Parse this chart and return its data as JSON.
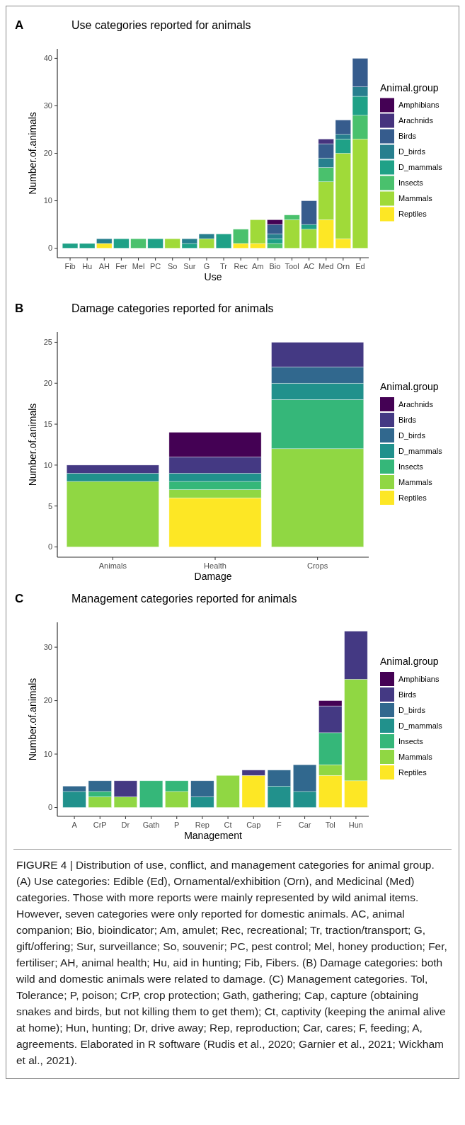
{
  "chart_data": [
    {
      "type": "bar",
      "stacked": true,
      "title": "Use categories reported for animals",
      "xlabel": "Use",
      "ylabel": "Number.of.animals",
      "legend_title": "Animal.group",
      "legend": "right",
      "annotations": [
        "A"
      ],
      "categories": [
        "Fib",
        "Hu",
        "AH",
        "Fer",
        "Mel",
        "PC",
        "So",
        "Sur",
        "G",
        "Tr",
        "Rec",
        "Am",
        "Bio",
        "Tool",
        "AC",
        "Med",
        "Orn",
        "Ed"
      ],
      "ylim": [
        -2,
        42
      ],
      "yticks": [
        0,
        10,
        20,
        30,
        40
      ],
      "series": [
        {
          "name": "Reptiles",
          "color": "#fde725",
          "values": [
            0,
            0,
            1,
            0,
            0,
            0,
            0,
            0,
            0,
            0,
            1,
            1,
            0,
            0,
            0,
            6,
            2,
            0
          ]
        },
        {
          "name": "Mammals",
          "color": "#a0da39",
          "values": [
            0,
            0,
            0,
            0,
            0,
            0,
            2,
            0,
            2,
            0,
            0,
            5,
            0,
            6,
            4,
            8,
            18,
            23
          ]
        },
        {
          "name": "Insects",
          "color": "#4ac16d",
          "values": [
            0,
            0,
            0,
            0,
            2,
            0,
            0,
            0,
            0,
            0,
            3,
            0,
            1,
            1,
            0,
            3,
            0,
            5
          ]
        },
        {
          "name": "D_mammals",
          "color": "#1fa187",
          "values": [
            1,
            1,
            0,
            2,
            0,
            2,
            0,
            1,
            0,
            3,
            0,
            0,
            1,
            0,
            1,
            0,
            3,
            4
          ]
        },
        {
          "name": "D_birds",
          "color": "#277f8e",
          "values": [
            0,
            0,
            1,
            0,
            0,
            0,
            0,
            1,
            1,
            0,
            0,
            0,
            1,
            0,
            0,
            2,
            1,
            2
          ]
        },
        {
          "name": "Birds",
          "color": "#365c8d",
          "values": [
            0,
            0,
            0,
            0,
            0,
            0,
            0,
            0,
            0,
            0,
            0,
            0,
            2,
            0,
            5,
            3,
            3,
            6
          ]
        },
        {
          "name": "Arachnids",
          "color": "#46337e",
          "values": [
            0,
            0,
            0,
            0,
            0,
            0,
            0,
            0,
            0,
            0,
            0,
            0,
            0,
            0,
            0,
            1,
            0,
            0
          ]
        },
        {
          "name": "Amphibians",
          "color": "#440154",
          "values": [
            0,
            0,
            0,
            0,
            0,
            0,
            0,
            0,
            0,
            0,
            0,
            0,
            1,
            0,
            0,
            0,
            0,
            0
          ]
        }
      ]
    },
    {
      "type": "bar",
      "stacked": true,
      "title": "Damage categories reported for animals",
      "xlabel": "Damage",
      "ylabel": "Number.of.animals",
      "legend_title": "Animal.group",
      "legend": "right",
      "annotations": [
        "B"
      ],
      "categories": [
        "Animals",
        "Health",
        "Crops"
      ],
      "ylim": [
        -1.25,
        26.25
      ],
      "yticks": [
        0,
        5,
        10,
        15,
        20,
        25
      ],
      "series": [
        {
          "name": "Reptiles",
          "color": "#fde725",
          "values": [
            0,
            6,
            0
          ]
        },
        {
          "name": "Mammals",
          "color": "#90d743",
          "values": [
            8,
            1,
            12
          ]
        },
        {
          "name": "Insects",
          "color": "#35b779",
          "values": [
            0,
            1,
            6
          ]
        },
        {
          "name": "D_mammals",
          "color": "#21918c",
          "values": [
            1,
            1,
            2
          ]
        },
        {
          "name": "D_birds",
          "color": "#31688e",
          "values": [
            0,
            0,
            2
          ]
        },
        {
          "name": "Birds",
          "color": "#443983",
          "values": [
            1,
            2,
            3
          ]
        },
        {
          "name": "Arachnids",
          "color": "#440154",
          "values": [
            0,
            3,
            0
          ]
        }
      ]
    },
    {
      "type": "bar",
      "stacked": true,
      "title": "Management categories reported for animals",
      "xlabel": "Management",
      "ylabel": "Number.of.animals",
      "legend_title": "Animal.group",
      "legend": "right",
      "annotations": [
        "C",
        "FIGURE 4 | Distribution of use, conflict, and management categories for animal group. (A) Use categories: Edible (Ed), Ornamental/exhibition (Orn), and Medicinal (Med) categories. Those with more reports were mainly represented by wild animal items. However, seven categories were only reported for domestic animals. AC, animal companion; Bio, bioindicator; Am, amulet; Rec, recreational; Tr, traction/transport; G, gift/offering; Sur, surveillance; So, souvenir; PC, pest control; Mel, honey production; Fer, fertiliser; AH, animal health; Hu, aid in hunting; Fib, Fibers. (B) Damage categories: both wild and domestic animals were related to damage. (C) Management categories. Tol, Tolerance; P, poison; CrP, crop protection; Gath, gathering; Cap, capture (obtaining snakes and birds, but not killing them to get them); Ct, captivity (keeping the animal alive at home); Hun, hunting; Dr, drive away; Rep, reproduction; Car, cares; F, feeding; A, agreements. Elaborated in R software (Rudis et al., 2020; Garnier et al., 2021; Wickham et al., 2021)."
      ],
      "categories": [
        "A",
        "CrP",
        "Dr",
        "Gath",
        "P",
        "Rep",
        "Ct",
        "Cap",
        "F",
        "Car",
        "Tol",
        "Hun"
      ],
      "ylim": [
        -1.65,
        34.65
      ],
      "yticks": [
        0,
        10,
        20,
        30
      ],
      "series": [
        {
          "name": "Reptiles",
          "color": "#fde725",
          "values": [
            0,
            0,
            0,
            0,
            0,
            0,
            0,
            6,
            0,
            0,
            6,
            5
          ]
        },
        {
          "name": "Mammals",
          "color": "#90d743",
          "values": [
            0,
            2,
            2,
            0,
            3,
            0,
            6,
            0,
            0,
            0,
            2,
            19
          ]
        },
        {
          "name": "Insects",
          "color": "#35b779",
          "values": [
            0,
            1,
            0,
            5,
            2,
            0,
            0,
            0,
            0,
            0,
            6,
            0
          ]
        },
        {
          "name": "D_mammals",
          "color": "#21918c",
          "values": [
            3,
            0,
            0,
            0,
            0,
            2,
            0,
            0,
            4,
            3,
            0,
            0
          ]
        },
        {
          "name": "D_birds",
          "color": "#31688e",
          "values": [
            1,
            2,
            0,
            0,
            0,
            3,
            0,
            0,
            3,
            5,
            0,
            0
          ]
        },
        {
          "name": "Birds",
          "color": "#443983",
          "values": [
            0,
            0,
            3,
            0,
            0,
            0,
            0,
            1,
            0,
            0,
            5,
            9
          ]
        },
        {
          "name": "Amphibians",
          "color": "#440154",
          "values": [
            0,
            0,
            0,
            0,
            0,
            0,
            0,
            0,
            0,
            0,
            1,
            0
          ]
        }
      ]
    }
  ]
}
